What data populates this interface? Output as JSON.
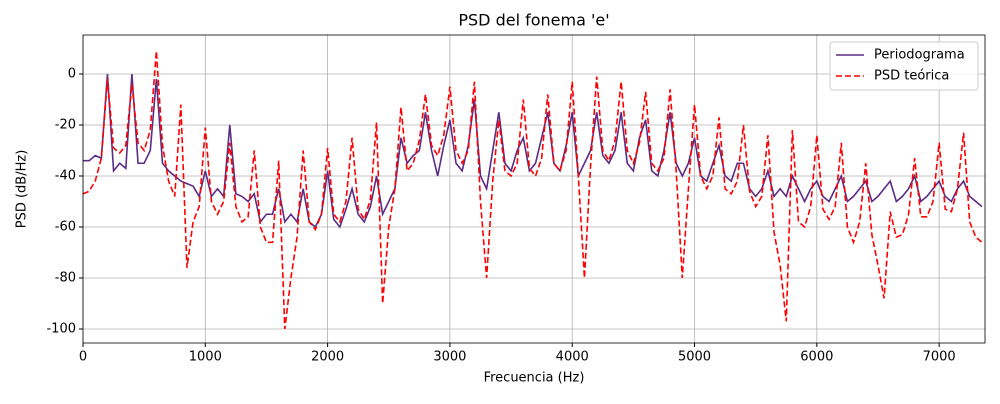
{
  "chart_data": {
    "type": "line",
    "title": "PSD del fonema 'e'",
    "xlabel": "Frecuencia (Hz)",
    "ylabel": "PSD (dB/Hz)",
    "x": [
      0,
      50,
      100,
      150,
      200,
      250,
      300,
      350,
      400,
      450,
      500,
      550,
      600,
      650,
      700,
      750,
      800,
      850,
      900,
      950,
      1000,
      1050,
      1100,
      1150,
      1200,
      1250,
      1300,
      1350,
      1400,
      1450,
      1500,
      1550,
      1600,
      1650,
      1700,
      1750,
      1800,
      1850,
      1900,
      1950,
      2000,
      2050,
      2100,
      2150,
      2200,
      2250,
      2300,
      2350,
      2400,
      2450,
      2500,
      2550,
      2600,
      2650,
      2700,
      2750,
      2800,
      2850,
      2900,
      2950,
      3000,
      3050,
      3100,
      3150,
      3200,
      3250,
      3300,
      3350,
      3400,
      3450,
      3500,
      3550,
      3600,
      3650,
      3700,
      3750,
      3800,
      3850,
      3900,
      3950,
      4000,
      4050,
      4100,
      4150,
      4200,
      4250,
      4300,
      4350,
      4400,
      4450,
      4500,
      4550,
      4600,
      4650,
      4700,
      4750,
      4800,
      4850,
      4900,
      4950,
      5000,
      5050,
      5100,
      5150,
      5200,
      5250,
      5300,
      5350,
      5400,
      5450,
      5500,
      5550,
      5600,
      5650,
      5700,
      5750,
      5800,
      5850,
      5900,
      5950,
      6000,
      6050,
      6100,
      6150,
      6200,
      6250,
      6300,
      6350,
      6400,
      6450,
      6500,
      6550,
      6600,
      6650,
      6700,
      6750,
      6800,
      6850,
      6900,
      6950,
      7000,
      7050,
      7100,
      7150,
      7200,
      7250,
      7300,
      7350
    ],
    "series": [
      {
        "name": "Periodograma",
        "color": "#5b2c83",
        "dash": "solid",
        "values": [
          -34,
          -34,
          -32,
          -33,
          0,
          -38,
          -35,
          -37,
          0,
          -35,
          -35,
          -30,
          -2,
          -35,
          -38,
          -40,
          -42,
          -43,
          -44,
          -48,
          -38,
          -48,
          -45,
          -48,
          -20,
          -47,
          -48,
          -50,
          -47,
          -58,
          -55,
          -55,
          -45,
          -58,
          -55,
          -58,
          -45,
          -58,
          -60,
          -55,
          -38,
          -57,
          -60,
          -53,
          -45,
          -55,
          -58,
          -52,
          -40,
          -55,
          -50,
          -45,
          -25,
          -35,
          -32,
          -30,
          -15,
          -30,
          -40,
          -28,
          -18,
          -35,
          -38,
          -28,
          -10,
          -40,
          -45,
          -30,
          -15,
          -35,
          -38,
          -30,
          -25,
          -38,
          -35,
          -25,
          -15,
          -35,
          -38,
          -28,
          -15,
          -40,
          -35,
          -30,
          -15,
          -32,
          -35,
          -30,
          -15,
          -35,
          -38,
          -25,
          -18,
          -38,
          -40,
          -30,
          -15,
          -35,
          -40,
          -35,
          -25,
          -40,
          -42,
          -35,
          -28,
          -40,
          -42,
          -35,
          -35,
          -45,
          -48,
          -45,
          -38,
          -48,
          -45,
          -48,
          -40,
          -45,
          -50,
          -45,
          -42,
          -48,
          -50,
          -45,
          -40,
          -50,
          -48,
          -45,
          -42,
          -50,
          -48,
          -45,
          -42,
          -50,
          -48,
          -45,
          -40,
          -50,
          -48,
          -45,
          -42,
          -48,
          -50,
          -45,
          -42,
          -48,
          -50,
          -52
        ]
      },
      {
        "name": "PSD teórica",
        "color": "#ff0000",
        "dash": "dashed",
        "values": [
          -47,
          -46,
          -42,
          -33,
          -2,
          -29,
          -31,
          -28,
          -4,
          -27,
          -30,
          -22,
          9,
          -28,
          -42,
          -48,
          -12,
          -76,
          -58,
          -52,
          -21,
          -50,
          -55,
          -50,
          -27,
          -52,
          -58,
          -56,
          -30,
          -60,
          -66,
          -66,
          -34,
          -100,
          -80,
          -64,
          -30,
          -58,
          -61,
          -55,
          -29,
          -55,
          -58,
          -50,
          -25,
          -53,
          -57,
          -49,
          -19,
          -90,
          -60,
          -45,
          -13,
          -38,
          -35,
          -26,
          -8,
          -28,
          -32,
          -24,
          -5,
          -30,
          -35,
          -30,
          -3,
          -50,
          -80,
          -42,
          -18,
          -38,
          -40,
          -35,
          -10,
          -37,
          -40,
          -33,
          -8,
          -35,
          -38,
          -30,
          -3,
          -40,
          -80,
          -36,
          -1,
          -30,
          -34,
          -26,
          -3,
          -30,
          -35,
          -27,
          -7,
          -35,
          -38,
          -33,
          -6,
          -38,
          -80,
          -45,
          -12,
          -40,
          -45,
          -40,
          -17,
          -45,
          -47,
          -42,
          -20,
          -46,
          -52,
          -48,
          -24,
          -62,
          -75,
          -97,
          -22,
          -58,
          -60,
          -52,
          -24,
          -53,
          -57,
          -52,
          -27,
          -60,
          -66,
          -58,
          -35,
          -63,
          -75,
          -88,
          -54,
          -64,
          -63,
          -55,
          -33,
          -56,
          -56,
          -50,
          -27,
          -53,
          -54,
          -45,
          -23,
          -58,
          -64,
          -66
        ]
      }
    ],
    "xlim": [
      0,
      7375
    ],
    "ylim": [
      -105.5,
      15.3
    ],
    "xticks": [
      0,
      1000,
      2000,
      3000,
      4000,
      5000,
      6000,
      7000
    ],
    "yticks": [
      -100,
      -80,
      -60,
      -40,
      -20,
      0
    ],
    "grid": true,
    "legend": "upper right"
  }
}
